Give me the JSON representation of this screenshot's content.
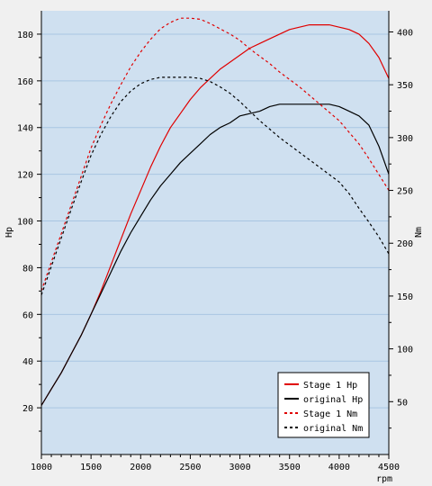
{
  "chart_data": {
    "type": "line",
    "xlabel": "rpm",
    "ylabel_left": "Hp",
    "ylabel_right": "Nm",
    "xlim": [
      1000,
      4500
    ],
    "ylim_left": [
      0,
      190
    ],
    "ylim_right": [
      0,
      420
    ],
    "x_ticks": [
      1000,
      1500,
      2000,
      2500,
      3000,
      3500,
      4000,
      4500
    ],
    "y_left_ticks": [
      20,
      40,
      60,
      80,
      100,
      120,
      140,
      160,
      180
    ],
    "y_right_ticks": [
      50,
      100,
      150,
      200,
      250,
      300,
      350,
      400
    ],
    "grid": "horizontal",
    "legend_position": "bottom-right",
    "background_color": "#cfe0f0",
    "series": [
      {
        "name": "Stage 1 Hp",
        "axis": "left",
        "color": "#e00000",
        "dash": "solid",
        "x": [
          1000,
          1100,
          1200,
          1300,
          1400,
          1500,
          1600,
          1700,
          1800,
          1900,
          2000,
          2100,
          2200,
          2300,
          2400,
          2500,
          2600,
          2700,
          2800,
          2900,
          3000,
          3100,
          3200,
          3300,
          3400,
          3500,
          3600,
          3700,
          3800,
          3900,
          4000,
          4100,
          4200,
          4300,
          4400,
          4500
        ],
        "values": [
          21,
          28,
          35,
          43,
          51,
          60,
          70,
          81,
          92,
          103,
          113,
          123,
          132,
          140,
          146,
          152,
          157,
          161,
          165,
          168,
          171,
          174,
          176,
          178,
          180,
          182,
          183,
          184,
          184,
          184,
          183,
          182,
          180,
          176,
          170,
          161
        ]
      },
      {
        "name": "original Hp",
        "axis": "left",
        "color": "#000000",
        "dash": "solid",
        "x": [
          1000,
          1100,
          1200,
          1300,
          1400,
          1500,
          1600,
          1700,
          1800,
          1900,
          2000,
          2100,
          2200,
          2300,
          2400,
          2500,
          2600,
          2700,
          2800,
          2900,
          3000,
          3100,
          3200,
          3300,
          3400,
          3500,
          3600,
          3700,
          3800,
          3900,
          4000,
          4100,
          4200,
          4300,
          4400,
          4500
        ],
        "values": [
          21,
          28,
          35,
          43,
          51,
          60,
          69,
          78,
          87,
          95,
          102,
          109,
          115,
          120,
          125,
          129,
          133,
          137,
          140,
          142,
          145,
          146,
          147,
          149,
          150,
          150,
          150,
          150,
          150,
          150,
          149,
          147,
          145,
          141,
          132,
          120
        ]
      },
      {
        "name": "Stage 1 Nm",
        "axis": "right",
        "color": "#e00000",
        "dash": "dashed",
        "x": [
          1000,
          1100,
          1200,
          1300,
          1400,
          1500,
          1600,
          1700,
          1800,
          1900,
          2000,
          2100,
          2200,
          2300,
          2400,
          2500,
          2600,
          2700,
          2800,
          2900,
          3000,
          3100,
          3200,
          3300,
          3400,
          3500,
          3600,
          3700,
          3800,
          3900,
          4000,
          4100,
          4200,
          4300,
          4400,
          4500
        ],
        "values": [
          155,
          182,
          209,
          236,
          263,
          290,
          312,
          332,
          350,
          367,
          381,
          393,
          403,
          409,
          413,
          413,
          412,
          408,
          403,
          398,
          392,
          384,
          377,
          370,
          362,
          355,
          348,
          340,
          332,
          324,
          316,
          305,
          294,
          280,
          265,
          250
        ]
      },
      {
        "name": "original Nm",
        "axis": "right",
        "color": "#000000",
        "dash": "dashed",
        "x": [
          1000,
          1100,
          1200,
          1300,
          1400,
          1500,
          1600,
          1700,
          1800,
          1900,
          2000,
          2100,
          2200,
          2300,
          2400,
          2500,
          2600,
          2700,
          2800,
          2900,
          3000,
          3100,
          3200,
          3300,
          3400,
          3500,
          3600,
          3700,
          3800,
          3900,
          4000,
          4100,
          4200,
          4300,
          4400,
          4500
        ],
        "values": [
          151,
          178,
          205,
          232,
          258,
          283,
          303,
          320,
          334,
          344,
          351,
          355,
          357,
          357,
          357,
          357,
          356,
          353,
          348,
          342,
          334,
          325,
          316,
          308,
          300,
          293,
          286,
          279,
          272,
          265,
          258,
          247,
          233,
          220,
          206,
          190
        ]
      }
    ]
  }
}
